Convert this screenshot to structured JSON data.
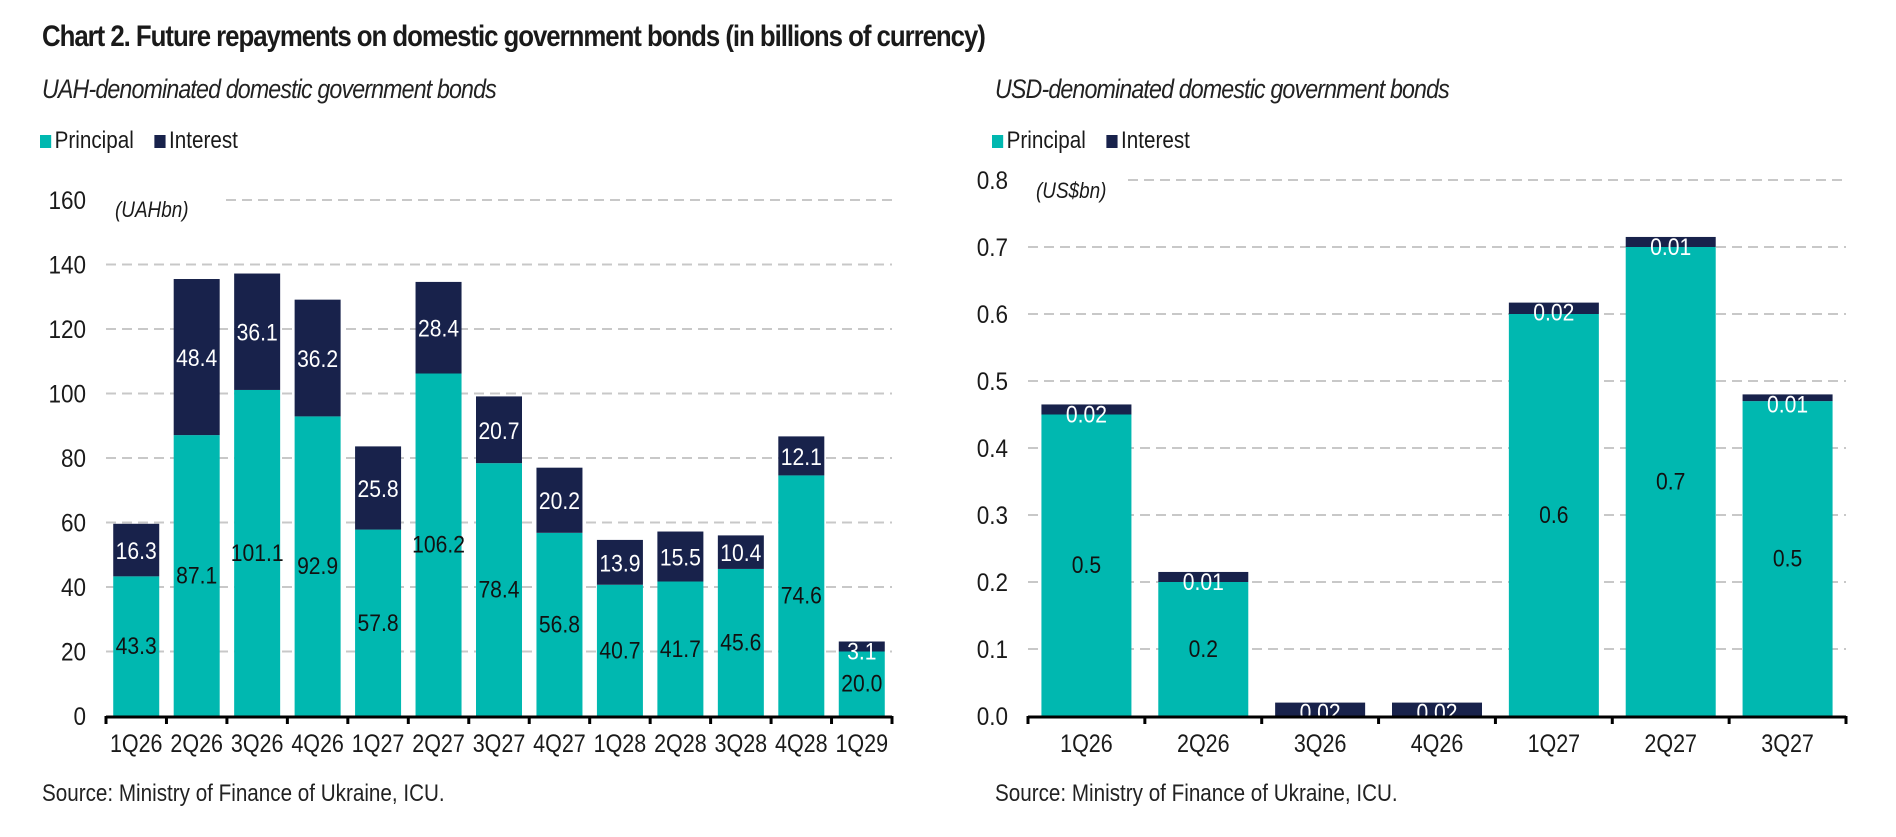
{
  "title": "Chart 2. Future repayments on domestic government bonds (in billions of currency)",
  "colors": {
    "principal": "#00b8b0",
    "interest": "#18224b",
    "grid": "#c8c8c8",
    "axis": "#000000"
  },
  "chart_data": [
    {
      "type": "bar",
      "stacked": true,
      "title": "UAH-denominated domestic government bonds",
      "unit_label": "(UAHbn)",
      "xlabel": "",
      "ylabel": "",
      "ylim": [
        0,
        160
      ],
      "yticks": [
        "0",
        "20",
        "40",
        "60",
        "80",
        "100",
        "120",
        "140",
        "160"
      ],
      "ytick_values": [
        0,
        20,
        40,
        60,
        80,
        100,
        120,
        140,
        160
      ],
      "grid": true,
      "legend": {
        "position": "top-left",
        "entries": [
          "Principal",
          "Interest"
        ]
      },
      "categories": [
        "1Q26",
        "2Q26",
        "3Q26",
        "4Q26",
        "1Q27",
        "2Q27",
        "3Q27",
        "4Q27",
        "1Q28",
        "2Q28",
        "3Q28",
        "4Q28",
        "1Q29"
      ],
      "series": [
        {
          "name": "Principal",
          "values": [
            43.3,
            87.1,
            101.1,
            92.9,
            57.8,
            106.2,
            78.4,
            56.8,
            40.7,
            41.7,
            45.6,
            74.6,
            20.0
          ],
          "labels": [
            "43.3",
            "87.1",
            "101.1",
            "92.9",
            "57.8",
            "106.2",
            "78.4",
            "56.8",
            "40.7",
            "41.7",
            "45.6",
            "74.6",
            "20.0"
          ]
        },
        {
          "name": "Interest",
          "values": [
            16.3,
            48.4,
            36.1,
            36.2,
            25.8,
            28.4,
            20.7,
            20.2,
            13.9,
            15.5,
            10.4,
            12.1,
            3.1
          ],
          "labels": [
            "16.3",
            "48.4",
            "36.1",
            "36.2",
            "25.8",
            "28.4",
            "20.7",
            "20.2",
            "13.9",
            "15.5",
            "10.4",
            "12.1",
            "3.1"
          ]
        }
      ],
      "source": "Source: Ministry of Finance of Ukraine, ICU."
    },
    {
      "type": "bar",
      "stacked": true,
      "title": "USD-denominated domestic government bonds",
      "unit_label": "(US$bn)",
      "xlabel": "",
      "ylabel": "",
      "ylim": [
        0,
        0.8
      ],
      "yticks": [
        "0.0",
        "0.1",
        "0.2",
        "0.3",
        "0.4",
        "0.5",
        "0.6",
        "0.7",
        "0.8"
      ],
      "ytick_values": [
        0,
        0.1,
        0.2,
        0.3,
        0.4,
        0.5,
        0.6,
        0.7,
        0.8
      ],
      "grid": true,
      "legend": {
        "position": "top-left",
        "entries": [
          "Principal",
          "Interest"
        ]
      },
      "categories": [
        "1Q26",
        "2Q26",
        "3Q26",
        "4Q26",
        "1Q27",
        "2Q27",
        "3Q27"
      ],
      "series": [
        {
          "name": "Principal",
          "values": [
            0.45,
            0.2,
            0.0,
            0.0,
            0.6,
            0.7,
            0.47
          ],
          "labels": [
            "0.5",
            "0.2",
            "",
            "",
            "0.6",
            "0.7",
            "0.5"
          ]
        },
        {
          "name": "Interest",
          "values": [
            0.015,
            0.015,
            0.02,
            0.02,
            0.017,
            0.015,
            0.01
          ],
          "labels": [
            "0.02",
            "0.01",
            "0.02",
            "0.02",
            "0.02",
            "0.01",
            "0.01"
          ]
        }
      ],
      "source": "Source: Ministry of Finance of Ukraine, ICU."
    }
  ]
}
